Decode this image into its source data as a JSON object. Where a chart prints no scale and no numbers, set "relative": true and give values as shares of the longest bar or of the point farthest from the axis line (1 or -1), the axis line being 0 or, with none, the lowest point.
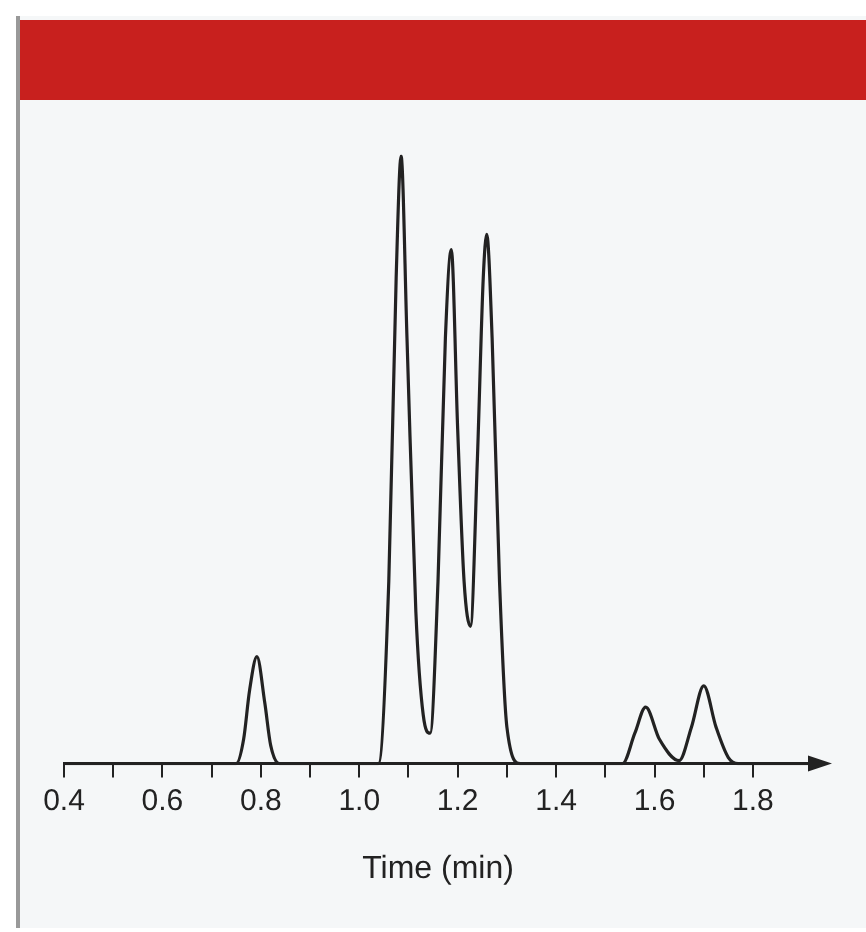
{
  "chart_data": {
    "type": "line",
    "relative": true,
    "xlabel": "Time (min)",
    "xlim": [
      0.4,
      1.92
    ],
    "xticks": [
      0.4,
      {
        "value": 0.5,
        "label": null
      },
      0.6,
      {
        "value": 0.7,
        "label": null
      },
      0.8,
      {
        "value": 0.9,
        "label": null
      },
      {
        "value": 1.0,
        "label": "1.0"
      },
      {
        "value": 1.1,
        "label": null
      },
      1.2,
      {
        "value": 1.3,
        "label": null
      },
      1.4,
      {
        "value": 1.5,
        "label": null
      },
      1.6,
      {
        "value": 1.7,
        "label": null
      },
      1.8
    ],
    "series": [
      {
        "color": "#222222",
        "x": [
          0.4,
          0.75,
          0.765,
          0.777,
          0.792,
          0.808,
          0.82,
          0.838,
          1.039,
          1.06,
          1.075,
          1.085,
          1.097,
          1.115,
          1.13,
          1.144,
          1.16,
          1.175,
          1.187,
          1.2,
          1.213,
          1.226,
          1.24,
          1.252,
          1.259,
          1.27,
          1.285,
          1.3,
          1.327,
          1.535,
          1.56,
          1.582,
          1.61,
          1.65,
          1.675,
          1.7,
          1.725,
          1.75,
          1.77,
          1.915
        ],
        "values": [
          0,
          0,
          0.04,
          0.12,
          0.176,
          0.1,
          0.03,
          0,
          0,
          0.3,
          0.8,
          1,
          0.7,
          0.25,
          0.08,
          0.05,
          0.3,
          0.7,
          0.846,
          0.55,
          0.3,
          0.226,
          0.5,
          0.8,
          0.871,
          0.7,
          0.3,
          0.06,
          0,
          0,
          0.05,
          0.093,
          0.04,
          0.005,
          0.06,
          0.128,
          0.06,
          0.01,
          0,
          0
        ]
      }
    ]
  }
}
